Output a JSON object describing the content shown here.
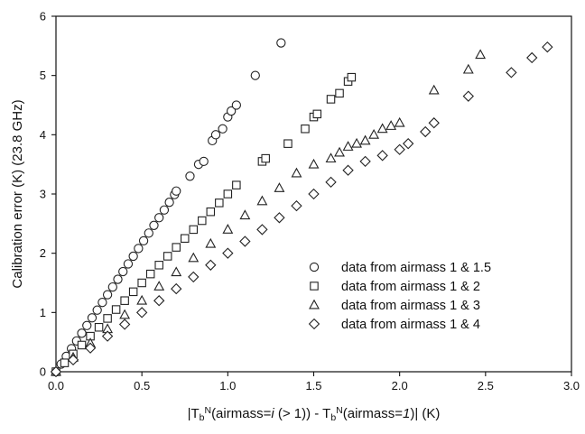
{
  "chart_data": {
    "type": "scatter",
    "title": "",
    "xlabel": "|T_b^N(airmass=i (> 1)) - T_b^N(airmass=1)| (K)",
    "ylabel": "Calibration error (K)  (23.8 GHz)",
    "xlim": [
      0,
      3.0
    ],
    "ylim": [
      0,
      6
    ],
    "xticks": [
      "0.0",
      "0.5",
      "1.0",
      "1.5",
      "2.0",
      "2.5",
      "3.0"
    ],
    "yticks": [
      "0",
      "1",
      "2",
      "3",
      "4",
      "5",
      "6"
    ],
    "grid": false,
    "legend_position": "lower-right",
    "series": [
      {
        "name": "data from airmass 1 & 1.5",
        "marker": "circle",
        "x": [
          0.0,
          0.03,
          0.06,
          0.09,
          0.12,
          0.15,
          0.18,
          0.21,
          0.24,
          0.27,
          0.3,
          0.33,
          0.36,
          0.39,
          0.42,
          0.45,
          0.48,
          0.51,
          0.54,
          0.57,
          0.6,
          0.63,
          0.66,
          0.69,
          0.7,
          0.78,
          0.83,
          0.86,
          0.91,
          0.93,
          0.97,
          1.0,
          1.02,
          1.05,
          1.16,
          1.31
        ],
        "y": [
          0.0,
          0.13,
          0.26,
          0.39,
          0.52,
          0.65,
          0.78,
          0.91,
          1.04,
          1.17,
          1.3,
          1.43,
          1.56,
          1.69,
          1.82,
          1.95,
          2.08,
          2.21,
          2.34,
          2.47,
          2.6,
          2.73,
          2.86,
          2.99,
          3.05,
          3.3,
          3.5,
          3.55,
          3.9,
          4.0,
          4.1,
          4.3,
          4.4,
          4.5,
          5.0,
          5.55
        ]
      },
      {
        "name": "data from airmass 1 & 2",
        "marker": "square",
        "x": [
          0.0,
          0.05,
          0.1,
          0.15,
          0.2,
          0.25,
          0.3,
          0.35,
          0.4,
          0.45,
          0.5,
          0.55,
          0.6,
          0.65,
          0.7,
          0.75,
          0.8,
          0.85,
          0.9,
          0.95,
          1.0,
          1.05,
          1.2,
          1.22,
          1.35,
          1.45,
          1.5,
          1.52,
          1.6,
          1.65,
          1.7,
          1.72
        ],
        "y": [
          0.0,
          0.15,
          0.3,
          0.45,
          0.6,
          0.75,
          0.9,
          1.05,
          1.2,
          1.35,
          1.5,
          1.65,
          1.8,
          1.95,
          2.1,
          2.25,
          2.4,
          2.55,
          2.7,
          2.85,
          3.0,
          3.15,
          3.55,
          3.6,
          3.85,
          4.1,
          4.3,
          4.35,
          4.6,
          4.7,
          4.9,
          4.97
        ]
      },
      {
        "name": "data from airmass 1 & 3",
        "marker": "triangle",
        "x": [
          0.0,
          0.1,
          0.2,
          0.3,
          0.4,
          0.5,
          0.6,
          0.7,
          0.8,
          0.9,
          1.0,
          1.1,
          1.2,
          1.3,
          1.4,
          1.5,
          1.6,
          1.65,
          1.7,
          1.75,
          1.8,
          1.85,
          1.9,
          1.95,
          2.0,
          2.2,
          2.4,
          2.47
        ],
        "y": [
          0.0,
          0.24,
          0.48,
          0.72,
          0.96,
          1.2,
          1.44,
          1.68,
          1.92,
          2.16,
          2.4,
          2.64,
          2.88,
          3.1,
          3.35,
          3.5,
          3.6,
          3.7,
          3.8,
          3.85,
          3.9,
          4.0,
          4.1,
          4.15,
          4.2,
          4.75,
          5.1,
          5.35
        ]
      },
      {
        "name": "data from airmass 1 & 4",
        "marker": "diamond",
        "x": [
          0.0,
          0.1,
          0.2,
          0.3,
          0.4,
          0.5,
          0.6,
          0.7,
          0.8,
          0.9,
          1.0,
          1.1,
          1.2,
          1.3,
          1.4,
          1.5,
          1.6,
          1.7,
          1.8,
          1.9,
          2.0,
          2.05,
          2.15,
          2.2,
          2.4,
          2.65,
          2.77,
          2.86
        ],
        "y": [
          0.0,
          0.2,
          0.4,
          0.6,
          0.8,
          1.0,
          1.2,
          1.4,
          1.6,
          1.8,
          2.0,
          2.2,
          2.4,
          2.6,
          2.8,
          3.0,
          3.2,
          3.4,
          3.55,
          3.65,
          3.75,
          3.85,
          4.05,
          4.2,
          4.65,
          5.05,
          5.3,
          5.48
        ]
      }
    ]
  }
}
